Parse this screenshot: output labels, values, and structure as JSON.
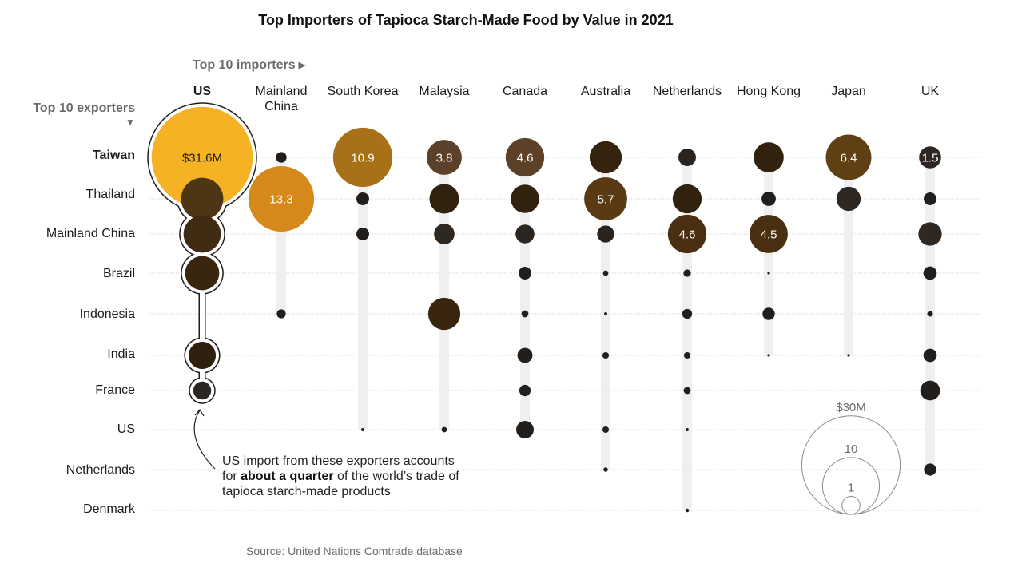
{
  "chart_data": {
    "type": "scatter",
    "subtype": "bubble-matrix",
    "title": "Top Importers of Tapioca Starch-Made Food by Value in 2021",
    "xlabel": "Top 10 importers",
    "ylabel": "Top 10 exporters",
    "unit": "$M",
    "importers": [
      "US",
      "Mainland\nChina",
      "South Korea",
      "Malaysia",
      "Canada",
      "Australia",
      "Netherlands",
      "Hong Kong",
      "Japan",
      "UK"
    ],
    "exporters": [
      "Taiwan",
      "Thailand",
      "Mainland China",
      "Brazil",
      "Indonesia",
      "India",
      "France",
      "US",
      "Netherlands",
      "Denmark"
    ],
    "bold_importers": [
      "US"
    ],
    "bold_exporters": [
      "Taiwan"
    ],
    "highlight_importer": "US",
    "grid": true,
    "points": [
      {
        "importer": "US",
        "exporter": "Taiwan",
        "value": 31.6,
        "label": "$31.6M",
        "color": "#F5B225",
        "label_color": "#1a1a1a"
      },
      {
        "importer": "US",
        "exporter": "Thailand",
        "value": 5.5,
        "color": "#4E3514"
      },
      {
        "importer": "US",
        "exporter": "Mainland China",
        "value": 4.3,
        "color": "#3F2A12"
      },
      {
        "importer": "US",
        "exporter": "Brazil",
        "value": 3.6,
        "color": "#38260F"
      },
      {
        "importer": "US",
        "exporter": "India",
        "value": 2.3,
        "color": "#2E1F0F"
      },
      {
        "importer": "US",
        "exporter": "France",
        "value": 1.0,
        "color": "#2C2622"
      },
      {
        "importer": "Mainland\nChina",
        "exporter": "Taiwan",
        "value": 0.35,
        "color": "#221E1B"
      },
      {
        "importer": "Mainland\nChina",
        "exporter": "Thailand",
        "value": 13.3,
        "label": "13.3",
        "color": "#D4891A",
        "label_color": "#ffffff"
      },
      {
        "importer": "Mainland\nChina",
        "exporter": "Indonesia",
        "value": 0.25,
        "color": "#221E1B"
      },
      {
        "importer": "South Korea",
        "exporter": "Taiwan",
        "value": 10.9,
        "label": "10.9",
        "color": "#A97117",
        "label_color": "#ffffff"
      },
      {
        "importer": "South Korea",
        "exporter": "Thailand",
        "value": 0.5,
        "color": "#221E1B"
      },
      {
        "importer": "South Korea",
        "exporter": "Mainland China",
        "value": 0.5,
        "color": "#221E1B"
      },
      {
        "importer": "South Korea",
        "exporter": "US",
        "value": 0.03,
        "color": "#221E1B"
      },
      {
        "importer": "Malaysia",
        "exporter": "Taiwan",
        "value": 3.8,
        "label": "3.8",
        "color": "#5B4129",
        "label_color": "#ffffff"
      },
      {
        "importer": "Malaysia",
        "exporter": "Thailand",
        "value": 2.7,
        "color": "#30220F"
      },
      {
        "importer": "Malaysia",
        "exporter": "Mainland China",
        "value": 1.3,
        "color": "#2E2722"
      },
      {
        "importer": "Malaysia",
        "exporter": "Indonesia",
        "value": 3.2,
        "color": "#3A2610"
      },
      {
        "importer": "Malaysia",
        "exporter": "US",
        "value": 0.09,
        "color": "#221E1B"
      },
      {
        "importer": "Canada",
        "exporter": "Taiwan",
        "value": 4.6,
        "label": "4.6",
        "color": "#5C4128",
        "label_color": "#ffffff"
      },
      {
        "importer": "Canada",
        "exporter": "Thailand",
        "value": 2.5,
        "color": "#30220F"
      },
      {
        "importer": "Canada",
        "exporter": "Mainland China",
        "value": 1.1,
        "color": "#2C2622"
      },
      {
        "importer": "Canada",
        "exporter": "Brazil",
        "value": 0.5,
        "color": "#221E1B"
      },
      {
        "importer": "Canada",
        "exporter": "Indonesia",
        "value": 0.15,
        "color": "#221E1B"
      },
      {
        "importer": "Canada",
        "exporter": "India",
        "value": 0.7,
        "color": "#221E1B"
      },
      {
        "importer": "Canada",
        "exporter": "France",
        "value": 0.4,
        "color": "#221E1B"
      },
      {
        "importer": "Canada",
        "exporter": "US",
        "value": 0.95,
        "color": "#221E1B"
      },
      {
        "importer": "Australia",
        "exporter": "Taiwan",
        "value": 3.2,
        "color": "#33230F"
      },
      {
        "importer": "Australia",
        "exporter": "Thailand",
        "value": 5.7,
        "label": "5.7",
        "color": "#5A3A12",
        "label_color": "#ffffff"
      },
      {
        "importer": "Australia",
        "exporter": "Mainland China",
        "value": 0.9,
        "color": "#2A2420"
      },
      {
        "importer": "Australia",
        "exporter": "Brazil",
        "value": 0.09,
        "color": "#221E1B"
      },
      {
        "importer": "Australia",
        "exporter": "Indonesia",
        "value": 0.03,
        "color": "#221E1B"
      },
      {
        "importer": "Australia",
        "exporter": "India",
        "value": 0.13,
        "color": "#221E1B"
      },
      {
        "importer": "Australia",
        "exporter": "US",
        "value": 0.13,
        "color": "#221E1B"
      },
      {
        "importer": "Australia",
        "exporter": "Netherlands",
        "value": 0.06,
        "color": "#221E1B"
      },
      {
        "importer": "Netherlands",
        "exporter": "Taiwan",
        "value": 0.95,
        "color": "#2A2420"
      },
      {
        "importer": "Netherlands",
        "exporter": "Thailand",
        "value": 2.6,
        "color": "#30220F"
      },
      {
        "importer": "Netherlands",
        "exporter": "Mainland China",
        "value": 4.6,
        "label": "4.6",
        "color": "#4A2F12",
        "label_color": "#ffffff"
      },
      {
        "importer": "Netherlands",
        "exporter": "Brazil",
        "value": 0.17,
        "color": "#221E1B"
      },
      {
        "importer": "Netherlands",
        "exporter": "Indonesia",
        "value": 0.3,
        "color": "#221E1B"
      },
      {
        "importer": "Netherlands",
        "exporter": "India",
        "value": 0.13,
        "color": "#221E1B"
      },
      {
        "importer": "Netherlands",
        "exporter": "France",
        "value": 0.15,
        "color": "#221E1B"
      },
      {
        "importer": "Netherlands",
        "exporter": "US",
        "value": 0.03,
        "color": "#221E1B"
      },
      {
        "importer": "Netherlands",
        "exporter": "Denmark",
        "value": 0.04,
        "color": "#221E1B"
      },
      {
        "importer": "Hong Kong",
        "exporter": "Taiwan",
        "value": 2.8,
        "color": "#30220F"
      },
      {
        "importer": "Hong Kong",
        "exporter": "Thailand",
        "value": 0.63,
        "color": "#221E1B"
      },
      {
        "importer": "Hong Kong",
        "exporter": "Mainland China",
        "value": 4.5,
        "label": "4.5",
        "color": "#4A2F12",
        "label_color": "#ffffff"
      },
      {
        "importer": "Hong Kong",
        "exporter": "Brazil",
        "value": 0.02,
        "color": "#221E1B"
      },
      {
        "importer": "Hong Kong",
        "exporter": "Indonesia",
        "value": 0.47,
        "color": "#221E1B"
      },
      {
        "importer": "Hong Kong",
        "exporter": "India",
        "value": 0.02,
        "color": "#221E1B"
      },
      {
        "importer": "Japan",
        "exporter": "Taiwan",
        "value": 6.4,
        "label": "6.4",
        "color": "#5F3F14",
        "label_color": "#ffffff"
      },
      {
        "importer": "Japan",
        "exporter": "Thailand",
        "value": 1.8,
        "color": "#2E2722"
      },
      {
        "importer": "Japan",
        "exporter": "India",
        "value": 0.02,
        "color": "#221E1B"
      },
      {
        "importer": "UK",
        "exporter": "Taiwan",
        "value": 1.5,
        "label": "1.5",
        "color": "#2E2622",
        "label_color": "#ffffff"
      },
      {
        "importer": "UK",
        "exporter": "Thailand",
        "value": 0.5,
        "color": "#221E1B"
      },
      {
        "importer": "UK",
        "exporter": "Mainland China",
        "value": 1.7,
        "color": "#2E2722"
      },
      {
        "importer": "UK",
        "exporter": "Brazil",
        "value": 0.55,
        "color": "#221E1B"
      },
      {
        "importer": "UK",
        "exporter": "Indonesia",
        "value": 0.1,
        "color": "#221E1B"
      },
      {
        "importer": "UK",
        "exporter": "India",
        "value": 0.55,
        "color": "#221E1B"
      },
      {
        "importer": "UK",
        "exporter": "France",
        "value": 1.2,
        "color": "#221E1B"
      },
      {
        "importer": "UK",
        "exporter": "Netherlands",
        "value": 0.46,
        "color": "#221E1B"
      }
    ],
    "size_legend": [
      {
        "value": 30,
        "label": "$30M"
      },
      {
        "value": 10,
        "label": "10"
      },
      {
        "value": 1,
        "label": "1"
      }
    ],
    "legend_placement": "bottom-right"
  },
  "header": {
    "title": "Top Importers of Tapioca Starch-Made Food by Value in 2021",
    "importers_hint": "Top 10 importers",
    "importers_hint_icon": "▶",
    "exporters_hint": "Top 10 exporters",
    "exporters_hint_icon": "▼"
  },
  "annotation": {
    "line1": "US import from these exporters accounts",
    "line2_pre": "for ",
    "line2_bold": "about a quarter",
    "line2_post": " of the world’s trade of",
    "line3": "tapioca starch-made products"
  },
  "source": "Source: United Nations Comtrade database",
  "colors": {
    "highlight_yellow": "#F5B225",
    "stem_gray": "#EFEFEF",
    "grid_gray": "#DADADA",
    "muted_text": "#6B6B6B"
  }
}
